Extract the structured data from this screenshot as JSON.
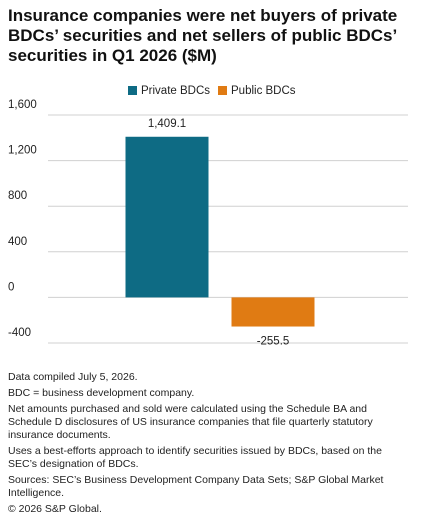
{
  "chart_data": {
    "type": "bar",
    "title": "Insurance companies were net buyers of private BDCs’ securities and net sellers of public BDCs’ securities in Q1 2026 ($M)",
    "categories": [
      null
    ],
    "series": [
      {
        "name": "Private BDCs",
        "color": "#0e6b84",
        "values": [
          1409.1
        ],
        "value_labels": [
          "1,409.1"
        ]
      },
      {
        "name": "Public BDCs",
        "color": "#e07b13",
        "values": [
          -255.5
        ],
        "value_labels": [
          "-255.5"
        ]
      }
    ],
    "ylim": [
      -400,
      1600
    ],
    "yticks": [
      {
        "value": 1600,
        "label": "1,600"
      },
      {
        "value": 1200,
        "label": "1,200"
      },
      800,
      400,
      0,
      -400
    ],
    "grid": true,
    "legend": "top",
    "notes": [
      "Data compiled July 5, 2026.",
      "BDC = business development company.",
      "Net amounts purchased and sold were calculated using the Schedule BA and Schedule D disclosures of US insurance companies that file quarterly statutory insurance documents.",
      "Uses a best-efforts approach to identify securities issued by BDCs, based on the SEC’s designation of BDCs.",
      "Sources: SEC’s Business Development Company Data Sets; S&P Global Market Intelligence.",
      "© 2026 S&P Global."
    ]
  }
}
